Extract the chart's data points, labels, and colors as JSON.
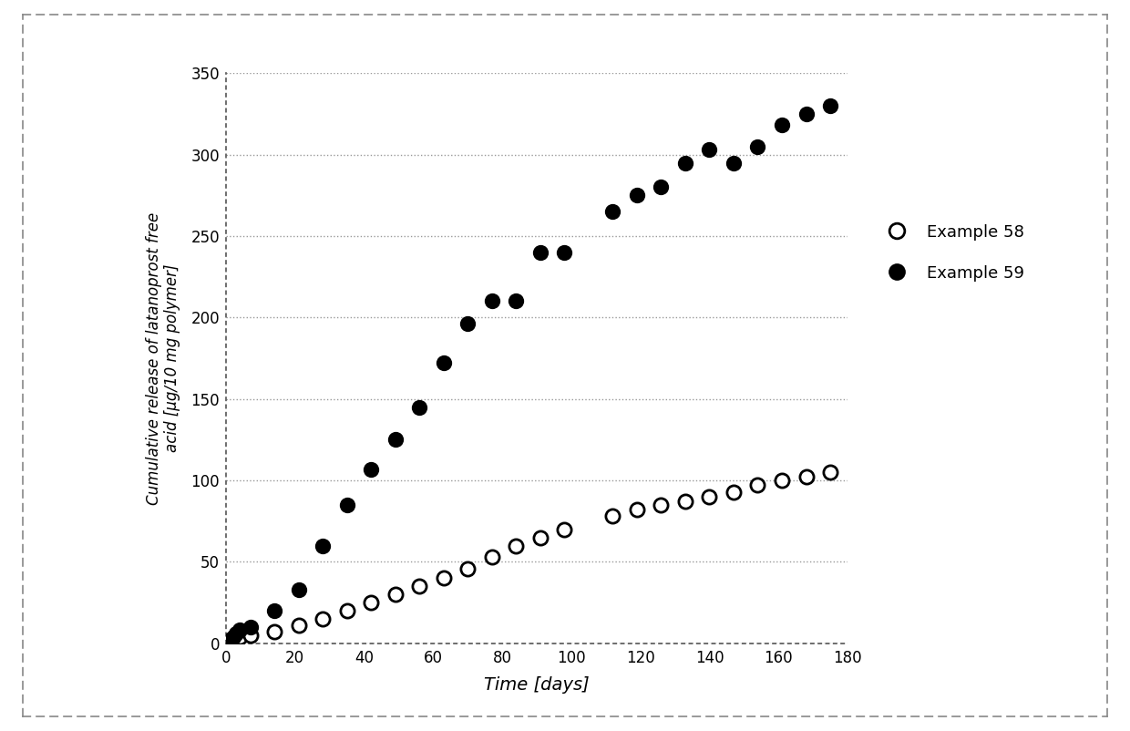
{
  "title": "",
  "xlabel": "Time [days]",
  "ylabel": "Cumulative release of latanoprost free\nacid [μg/10 mg polymer]",
  "xlim": [
    0,
    180
  ],
  "ylim": [
    0,
    350
  ],
  "xticks": [
    0,
    20,
    40,
    60,
    80,
    100,
    120,
    140,
    160,
    180
  ],
  "yticks": [
    0,
    50,
    100,
    150,
    200,
    250,
    300,
    350
  ],
  "example58_x": [
    0,
    1,
    2,
    3,
    4,
    7,
    14,
    21,
    28,
    35,
    42,
    49,
    56,
    63,
    70,
    77,
    84,
    91,
    98,
    112,
    119,
    126,
    133,
    140,
    147,
    154,
    161,
    168,
    175
  ],
  "example58_y": [
    0,
    1,
    2,
    3,
    4,
    5,
    7,
    11,
    15,
    20,
    25,
    30,
    35,
    40,
    46,
    53,
    60,
    65,
    70,
    78,
    82,
    85,
    87,
    90,
    93,
    97,
    100,
    102,
    105
  ],
  "example59_x": [
    0,
    1,
    2,
    3,
    4,
    7,
    14,
    21,
    28,
    35,
    42,
    49,
    56,
    63,
    70,
    77,
    84,
    91,
    98,
    112,
    119,
    126,
    133,
    140,
    147,
    154,
    161,
    168,
    175
  ],
  "example59_y": [
    0,
    2,
    4,
    6,
    8,
    10,
    20,
    33,
    60,
    85,
    107,
    125,
    145,
    172,
    196,
    210,
    210,
    240,
    240,
    265,
    275,
    280,
    295,
    303,
    295,
    305,
    318,
    325,
    330
  ],
  "marker_size": 120,
  "background_color": "#ffffff",
  "plot_background": "#ffffff",
  "grid_color": "#999999",
  "spine_color": "#555555"
}
